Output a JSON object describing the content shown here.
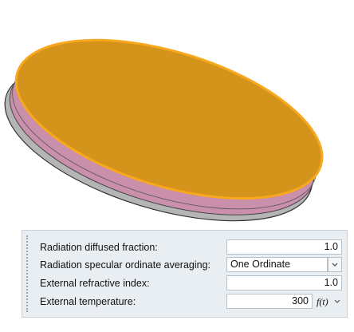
{
  "properties": [
    {
      "label": "Radiation diffused fraction:",
      "value": "1.0"
    },
    {
      "label": "Radiation specular ordinate averaging:",
      "value": "One Ordinate"
    },
    {
      "label": "External refractive index:",
      "value": "1.0"
    },
    {
      "label": "External temperature:",
      "value": "300",
      "button": "f(t)"
    }
  ]
}
